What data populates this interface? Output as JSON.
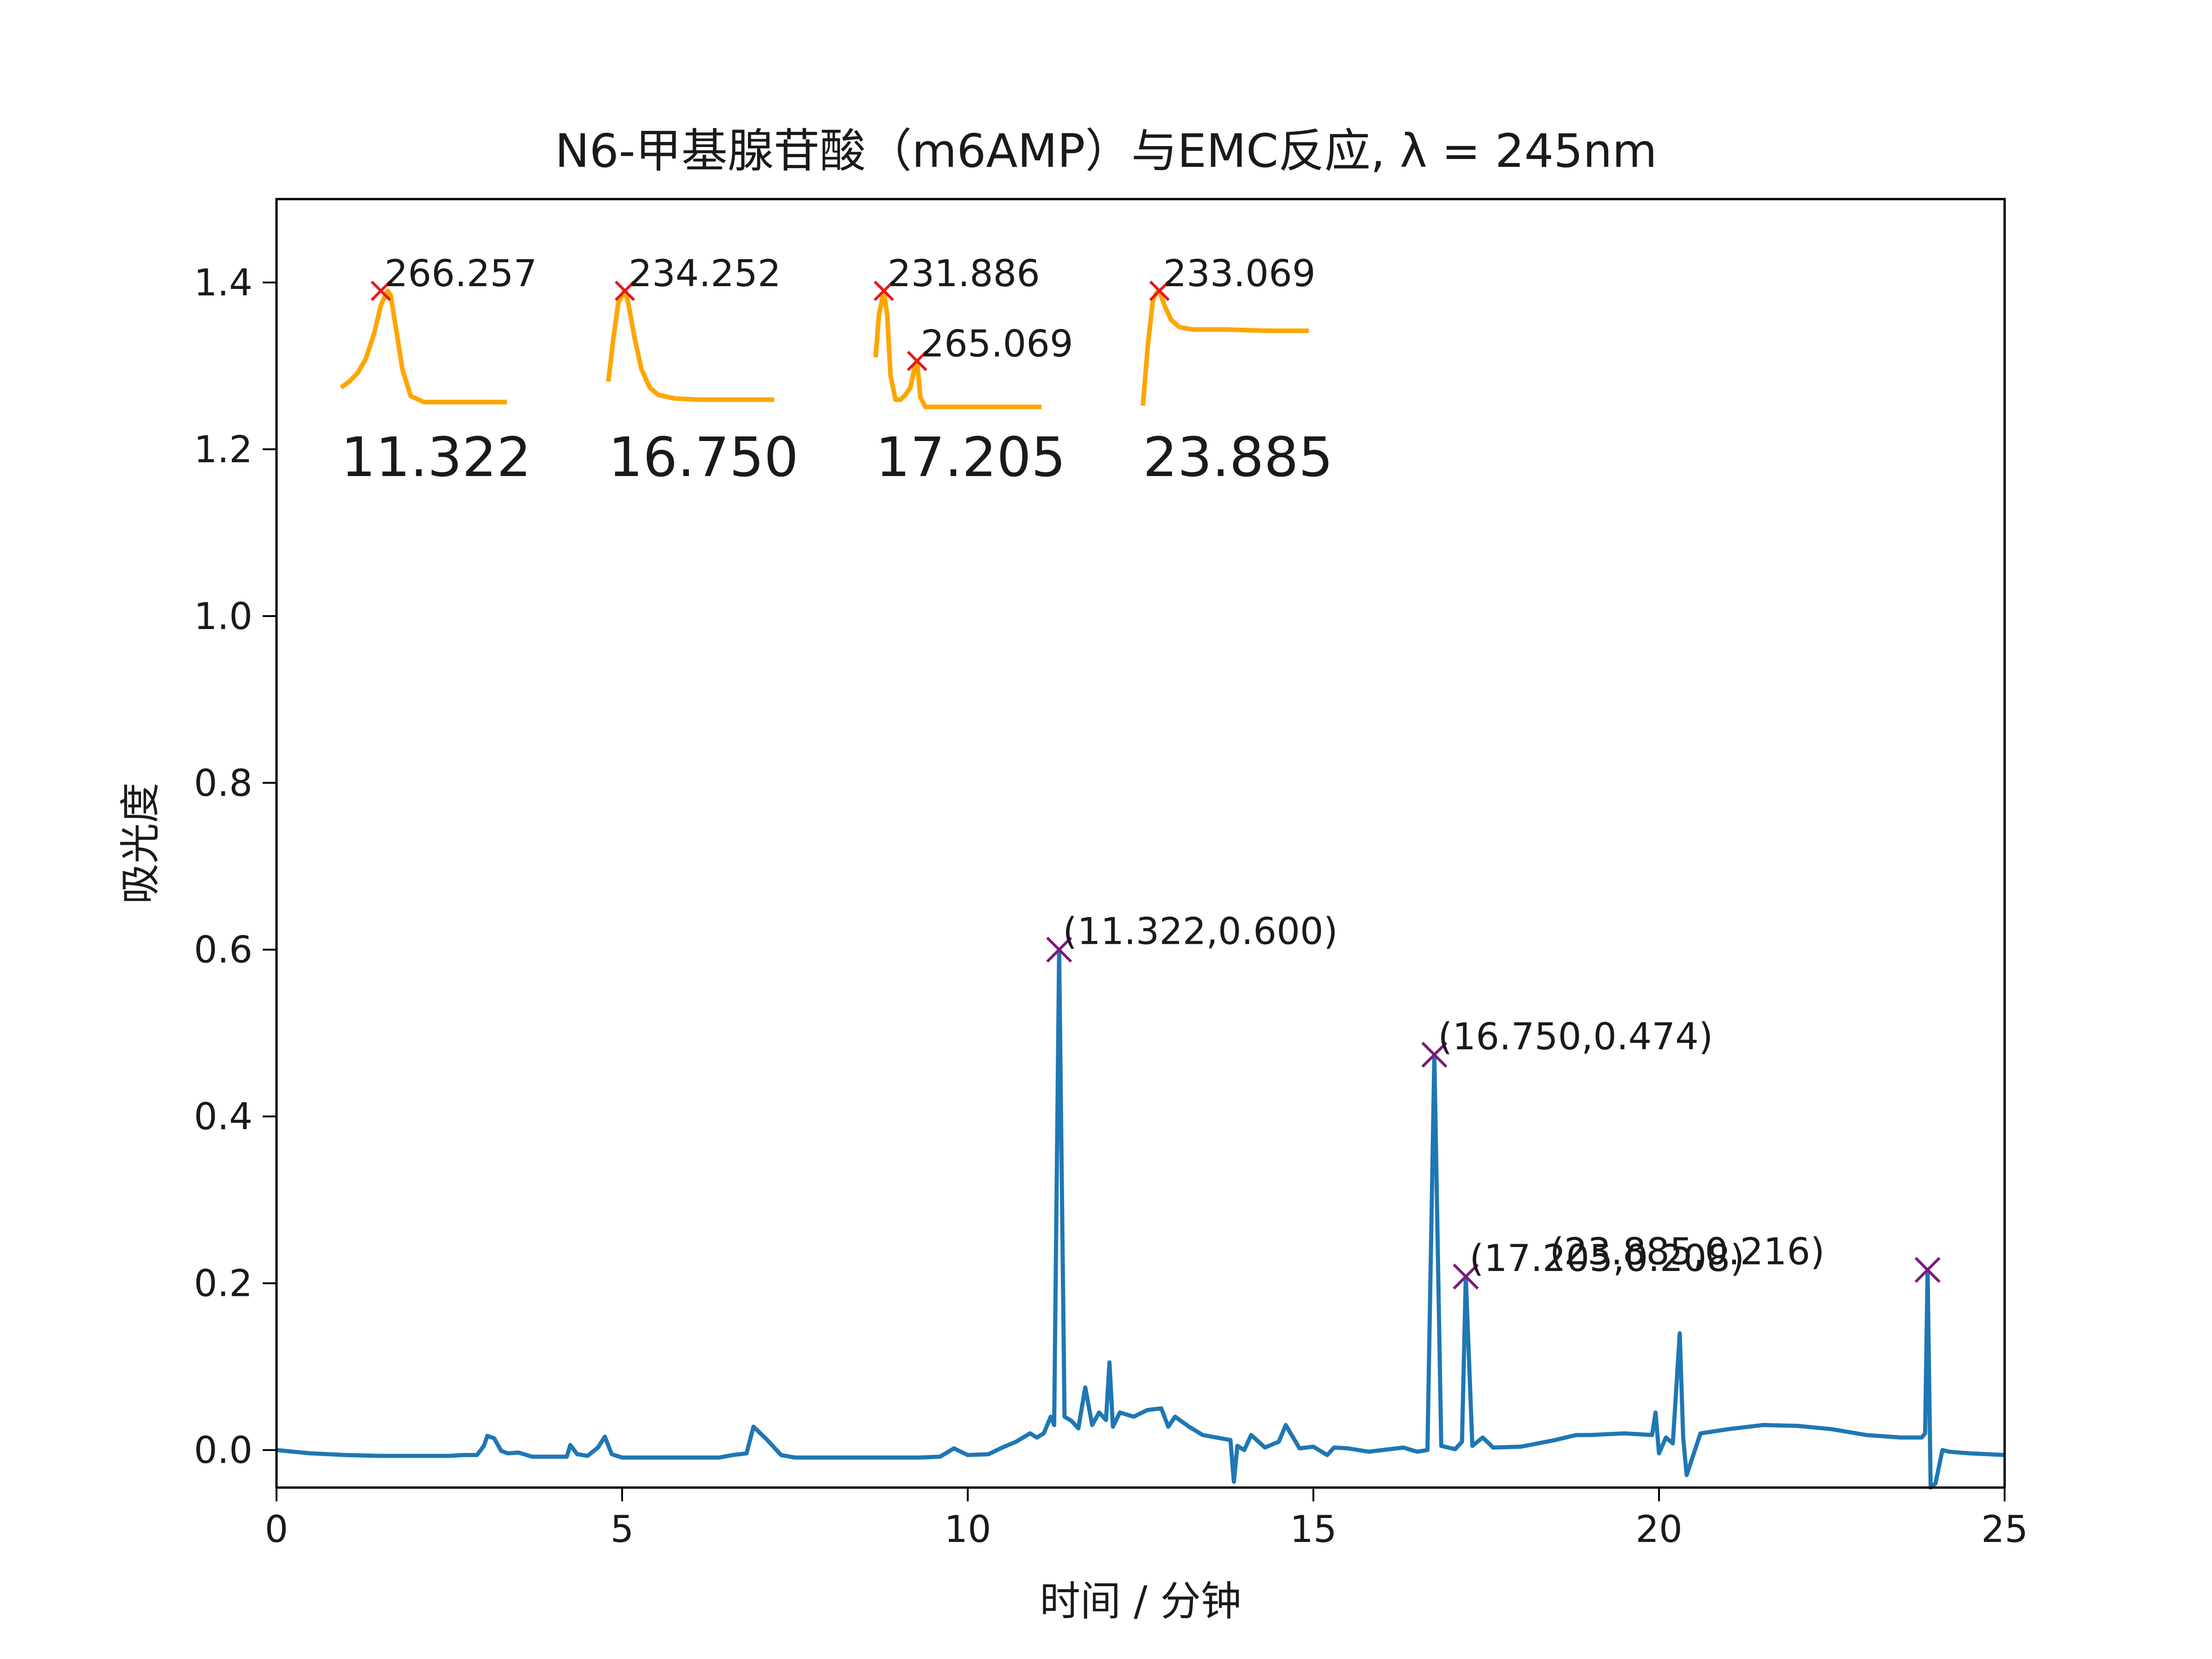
{
  "chart_data": {
    "type": "line",
    "title": "N6-甲基腺苷酸（m6AMP）与EMC反应, λ = 245nm",
    "xlabel": "时间 / 分钟",
    "ylabel": "吸光度",
    "xlim": [
      0,
      25
    ],
    "ylim": [
      -0.045,
      1.5
    ],
    "xticks": [
      0,
      5,
      10,
      15,
      20,
      25
    ],
    "xtick_labels": [
      "0",
      "5",
      "10",
      "15",
      "20",
      "25"
    ],
    "yticks": [
      0.0,
      0.2,
      0.4,
      0.6,
      0.8,
      1.0,
      1.2,
      1.4
    ],
    "ytick_labels": [
      "0.0",
      "0.2",
      "0.4",
      "0.6",
      "0.8",
      "1.0",
      "1.2",
      "1.4"
    ],
    "grid": false,
    "colors": {
      "trace": "#1f77b4",
      "peak_marker": "#7b1a7b",
      "spectrum": "#ffa500",
      "spectrum_marker": "#e31a1c"
    },
    "series": [
      {
        "x": [
          0,
          0.5,
          1,
          1.5,
          2,
          2.5,
          2.7,
          2.9,
          3.0,
          3.05,
          3.15,
          3.25,
          3.35,
          3.5,
          3.7,
          4.0,
          4.2,
          4.25,
          4.35,
          4.5,
          4.65,
          4.75,
          4.85,
          5.0,
          5.5,
          6.0,
          6.4,
          6.6,
          6.8,
          6.9,
          7.1,
          7.3,
          7.5,
          8.0,
          8.5,
          9.0,
          9.3,
          9.6,
          9.8,
          10.0,
          10.3,
          10.5,
          10.7,
          10.9,
          11.0,
          11.1,
          11.2,
          11.25,
          11.322,
          11.4,
          11.5,
          11.6,
          11.7,
          11.8,
          11.9,
          12.0,
          12.05,
          12.1,
          12.2,
          12.4,
          12.6,
          12.8,
          12.9,
          13.0,
          13.2,
          13.4,
          13.6,
          13.8,
          13.85,
          13.9,
          14.0,
          14.1,
          14.3,
          14.5,
          14.6,
          14.8,
          15.0,
          15.2,
          15.3,
          15.5,
          15.8,
          16.0,
          16.3,
          16.5,
          16.65,
          16.75,
          16.85,
          16.95,
          17.05,
          17.15,
          17.205,
          17.3,
          17.45,
          17.6,
          18.0,
          18.5,
          18.8,
          19.0,
          19.5,
          19.9,
          19.95,
          20.0,
          20.1,
          20.2,
          20.3,
          20.35,
          20.4,
          20.6,
          21.0,
          21.5,
          22.0,
          22.5,
          23.0,
          23.5,
          23.8,
          23.85,
          23.885,
          23.93,
          24.0,
          24.1,
          24.2,
          24.5,
          25.0
        ],
        "y": [
          0.0,
          -0.004,
          -0.006,
          -0.007,
          -0.007,
          -0.007,
          -0.006,
          -0.006,
          0.005,
          0.017,
          0.014,
          -0.001,
          -0.004,
          -0.003,
          -0.008,
          -0.008,
          -0.008,
          0.006,
          -0.005,
          -0.007,
          0.003,
          0.016,
          -0.005,
          -0.009,
          -0.009,
          -0.009,
          -0.009,
          -0.006,
          -0.004,
          0.028,
          0.012,
          -0.006,
          -0.009,
          -0.009,
          -0.009,
          -0.009,
          -0.009,
          -0.008,
          0.002,
          -0.006,
          -0.005,
          0.003,
          0.01,
          0.02,
          0.015,
          0.02,
          0.04,
          0.03,
          0.6,
          0.04,
          0.035,
          0.026,
          0.075,
          0.03,
          0.045,
          0.036,
          0.105,
          0.028,
          0.045,
          0.04,
          0.048,
          0.05,
          0.028,
          0.04,
          0.028,
          0.018,
          0.015,
          0.012,
          -0.038,
          0.005,
          0.0,
          0.018,
          0.003,
          0.01,
          0.03,
          0.002,
          0.004,
          -0.006,
          0.003,
          0.002,
          -0.002,
          0.0,
          0.003,
          -0.002,
          0.0,
          0.474,
          0.005,
          0.003,
          0.001,
          0.01,
          0.208,
          0.005,
          0.015,
          0.003,
          0.004,
          0.012,
          0.018,
          0.018,
          0.02,
          0.018,
          0.045,
          -0.004,
          0.015,
          0.008,
          0.14,
          0.015,
          -0.03,
          0.02,
          0.025,
          0.03,
          0.029,
          0.025,
          0.018,
          0.015,
          0.015,
          0.02,
          0.216,
          -0.045,
          -0.04,
          0.0,
          -0.002,
          -0.004,
          -0.006
        ]
      }
    ],
    "peak_markers": [
      {
        "x": 11.322,
        "y": 0.6,
        "label": "(11.322,0.600)"
      },
      {
        "x": 16.75,
        "y": 0.474,
        "label": "(16.750,0.474)"
      },
      {
        "x": 17.205,
        "y": 0.208,
        "label": "(17.205,0.208)"
      },
      {
        "x": 23.885,
        "y": 0.216,
        "label": "(23.885,0.216)"
      }
    ],
    "spectra_insets": [
      {
        "retention_time": "11.322",
        "x": [
          0,
          0.05,
          0.1,
          0.15,
          0.2,
          0.24,
          0.28,
          0.3,
          0.33,
          0.37,
          0.42,
          0.5,
          0.6,
          0.75,
          1.0
        ],
        "y": [
          0.2,
          0.25,
          0.32,
          0.44,
          0.65,
          0.88,
          1.0,
          0.96,
          0.7,
          0.35,
          0.13,
          0.08,
          0.08,
          0.08,
          0.08
        ],
        "maxima": [
          {
            "x": 0.24,
            "y": 1.0,
            "label": "266.257"
          }
        ]
      },
      {
        "retention_time": "16.750",
        "x": [
          0,
          0.03,
          0.06,
          0.09,
          0.1,
          0.12,
          0.16,
          0.2,
          0.25,
          0.3,
          0.4,
          0.55,
          0.75,
          1.0
        ],
        "y": [
          0.25,
          0.6,
          0.9,
          0.98,
          1.0,
          0.9,
          0.6,
          0.35,
          0.2,
          0.14,
          0.11,
          0.1,
          0.1,
          0.1
        ],
        "maxima": [
          {
            "x": 0.1,
            "y": 1.0,
            "label": "234.252"
          }
        ]
      },
      {
        "retention_time": "17.205",
        "x": [
          0,
          0.02,
          0.05,
          0.07,
          0.09,
          0.12,
          0.15,
          0.18,
          0.21,
          0.24,
          0.25,
          0.27,
          0.3,
          0.45,
          0.65,
          1.0
        ],
        "y": [
          0.45,
          0.8,
          1.0,
          0.8,
          0.3,
          0.1,
          0.1,
          0.14,
          0.2,
          0.4,
          0.42,
          0.12,
          0.04,
          0.04,
          0.04,
          0.04
        ],
        "maxima": [
          {
            "x": 0.05,
            "y": 1.0,
            "label": "231.886"
          },
          {
            "x": 0.25,
            "y": 0.42,
            "label": "265.069"
          }
        ]
      },
      {
        "retention_time": "23.885",
        "x": [
          0,
          0.03,
          0.06,
          0.08,
          0.1,
          0.13,
          0.17,
          0.22,
          0.3,
          0.5,
          0.75,
          1.0
        ],
        "y": [
          0.05,
          0.55,
          0.92,
          0.98,
          1.0,
          0.88,
          0.76,
          0.7,
          0.68,
          0.68,
          0.67,
          0.67
        ],
        "maxima": [
          {
            "x": 0.1,
            "y": 1.0,
            "label": "233.069"
          }
        ]
      }
    ]
  }
}
